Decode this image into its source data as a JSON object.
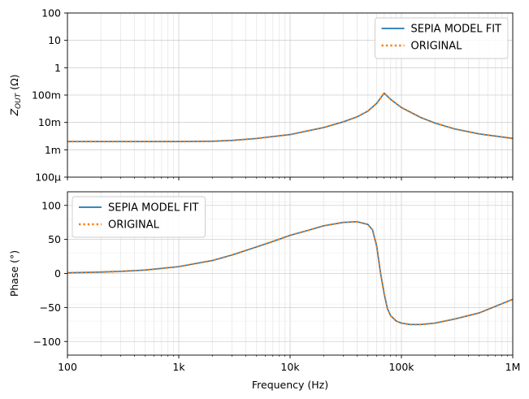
{
  "chart_data": [
    {
      "type": "line",
      "xlabel": "",
      "ylabel": "Z_OUT (Ω)",
      "ylabel_main": "Z",
      "ylabel_sub": "OUT",
      "ylabel_unit": " (Ω)",
      "x_scale": "log",
      "y_scale": "log",
      "xlim": [
        100,
        1000000
      ],
      "ylim": [
        0.0001,
        100
      ],
      "grid": true,
      "legend_position": "upper-right",
      "y_ticks": [
        {
          "value": 100,
          "label": "100"
        },
        {
          "value": 10,
          "label": "10"
        },
        {
          "value": 1,
          "label": "1"
        },
        {
          "value": 0.1,
          "label": "100m"
        },
        {
          "value": 0.01,
          "label": "10m"
        },
        {
          "value": 0.001,
          "label": "1m"
        },
        {
          "value": 0.0001,
          "label": "100µ"
        }
      ],
      "x": [
        100,
        200,
        500,
        1000,
        2000,
        3000,
        5000,
        10000,
        20000,
        30000,
        40000,
        50000,
        60000,
        70000,
        80000,
        100000,
        150000,
        200000,
        300000,
        500000,
        1000000
      ],
      "series": [
        {
          "name": "SEPIA MODEL FIT",
          "color": "#1f77b4",
          "style": "solid",
          "values": [
            0.002,
            0.002,
            0.002,
            0.002,
            0.00205,
            0.0022,
            0.0026,
            0.0036,
            0.0065,
            0.0105,
            0.016,
            0.026,
            0.05,
            0.118,
            0.07,
            0.035,
            0.015,
            0.0095,
            0.0058,
            0.0038,
            0.0026
          ]
        },
        {
          "name": "ORIGINAL",
          "color": "#ff7f0e",
          "style": "dotted",
          "values": [
            0.002,
            0.002,
            0.002,
            0.002,
            0.00205,
            0.0022,
            0.0026,
            0.0036,
            0.0065,
            0.0105,
            0.016,
            0.026,
            0.05,
            0.118,
            0.07,
            0.035,
            0.015,
            0.0095,
            0.0058,
            0.0038,
            0.0026
          ]
        }
      ]
    },
    {
      "type": "line",
      "xlabel": "Frequency (Hz)",
      "ylabel": "Phase (°)",
      "x_scale": "log",
      "y_scale": "linear",
      "xlim": [
        100,
        1000000
      ],
      "ylim": [
        -120,
        120
      ],
      "grid": true,
      "legend_position": "upper-left",
      "x_ticks": [
        {
          "value": 100,
          "label": "100"
        },
        {
          "value": 1000,
          "label": "1k"
        },
        {
          "value": 10000,
          "label": "10k"
        },
        {
          "value": 100000,
          "label": "100k"
        },
        {
          "value": 1000000,
          "label": "1M"
        }
      ],
      "y_ticks": [
        {
          "value": 100,
          "label": "100"
        },
        {
          "value": 50,
          "label": "50"
        },
        {
          "value": 0,
          "label": "0"
        },
        {
          "value": -50,
          "label": "−50"
        },
        {
          "value": -100,
          "label": "−100"
        }
      ],
      "x": [
        100,
        200,
        300,
        500,
        1000,
        2000,
        3000,
        5000,
        7000,
        10000,
        15000,
        20000,
        30000,
        40000,
        50000,
        55000,
        60000,
        65000,
        70000,
        75000,
        80000,
        90000,
        100000,
        120000,
        150000,
        200000,
        300000,
        500000,
        1000000
      ],
      "series": [
        {
          "name": "SEPIA MODEL FIT",
          "color": "#1f77b4",
          "style": "solid",
          "values": [
            1,
            2,
            3,
            5,
            10,
            19,
            27,
            39,
            47,
            56,
            64,
            70,
            75,
            76,
            72,
            64,
            40,
            0,
            -30,
            -52,
            -62,
            -70,
            -73,
            -75,
            -75,
            -73,
            -67,
            -58,
            -38
          ]
        },
        {
          "name": "ORIGINAL",
          "color": "#ff7f0e",
          "style": "dotted",
          "values": [
            1,
            2,
            3,
            5,
            10,
            19,
            27,
            39,
            47,
            56,
            64,
            70,
            75,
            76,
            72,
            64,
            40,
            0,
            -30,
            -52,
            -62,
            -70,
            -73,
            -75,
            -75,
            -73,
            -67,
            -58,
            -38
          ]
        }
      ]
    }
  ]
}
